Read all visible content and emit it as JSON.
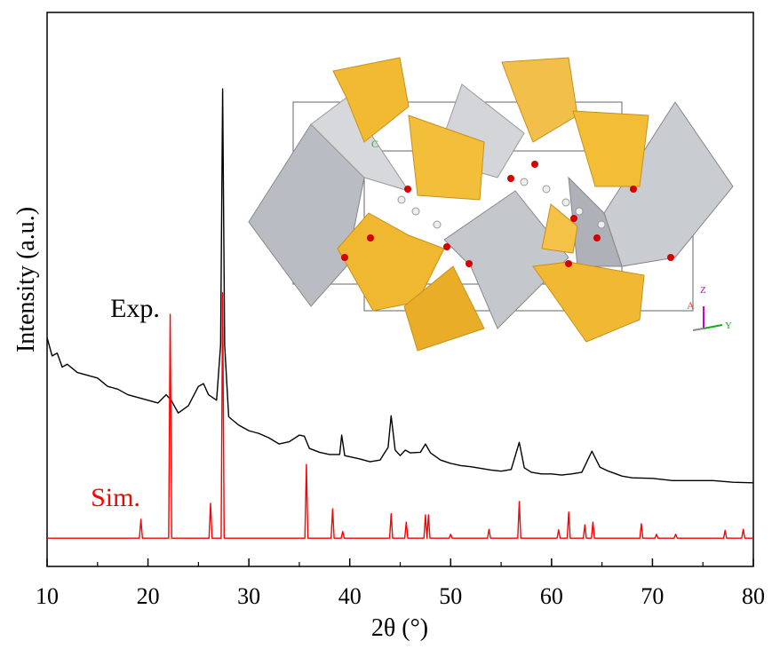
{
  "chart_data": {
    "type": "line",
    "x_label": "2θ (°)",
    "y_label": "Intensity (a.u.)",
    "xlim": [
      10,
      80
    ],
    "ylim": [
      0,
      100
    ],
    "xticks": [
      10,
      20,
      30,
      40,
      50,
      60,
      70,
      80
    ],
    "xminor_ticks": [
      15,
      25,
      35,
      45,
      55,
      65,
      75
    ],
    "inset_labels": [
      "C",
      "A",
      "Z",
      "Y"
    ],
    "series": [
      {
        "name": "Exp.",
        "color": "#000000",
        "x": [
          10,
          10.5,
          11,
          11.5,
          12,
          13,
          14,
          15,
          16,
          17,
          18,
          19,
          20,
          21,
          21.8,
          22.3,
          23,
          24,
          25,
          25.5,
          26,
          26.8,
          27.2,
          27.4,
          27.6,
          28,
          29,
          30,
          31,
          32,
          33,
          34,
          35,
          35.5,
          36,
          37,
          38,
          39,
          39.2,
          39.5,
          40,
          41,
          42,
          43,
          43.8,
          44.1,
          44.5,
          45,
          45.5,
          46,
          47,
          47.5,
          48,
          49,
          50,
          51,
          52,
          53,
          54,
          55,
          56,
          56.8,
          57.3,
          58,
          59,
          60,
          61,
          62,
          63,
          64,
          64.8,
          65.5,
          67,
          68,
          70,
          72,
          74,
          76,
          78,
          80
        ],
        "values": [
          41.3,
          38,
          38.5,
          36,
          36.5,
          35,
          34.5,
          34,
          32.5,
          32,
          31,
          30.5,
          30,
          29.5,
          31,
          30,
          27.7,
          29,
          32.5,
          33,
          31,
          30,
          40,
          86.2,
          40,
          27,
          25.5,
          24.5,
          24,
          23.2,
          22.1,
          22.5,
          23.7,
          23.5,
          21.3,
          20.6,
          20.2,
          20.2,
          23.7,
          20,
          19.8,
          19.4,
          18.9,
          19.2,
          21.5,
          27.2,
          21,
          20,
          21,
          20.5,
          20.6,
          22.1,
          20.5,
          19.2,
          18.6,
          18.2,
          18,
          17.7,
          17.4,
          17.2,
          17.5,
          22.4,
          17.8,
          17,
          16.7,
          16.7,
          16.5,
          16.7,
          17,
          20.8,
          17.9,
          17.3,
          16.3,
          16,
          15.9,
          15.5,
          15.5,
          15.5,
          15.2,
          15.1
        ]
      },
      {
        "name": "Sim.",
        "color": "#ff0000",
        "x": [
          10,
          19.15,
          19.3,
          19.45,
          22.05,
          22.2,
          22.35,
          26.05,
          26.2,
          26.35,
          27.25,
          27.4,
          27.55,
          35.55,
          35.7,
          35.85,
          38.15,
          38.3,
          38.45,
          39.15,
          39.3,
          39.45,
          43.95,
          44.1,
          44.25,
          45.45,
          45.6,
          45.75,
          47.35,
          47.5,
          47.65,
          47.8,
          47.95,
          49.85,
          50,
          50.15,
          53.65,
          53.8,
          53.95,
          56.65,
          56.8,
          56.95,
          60.55,
          60.7,
          60.85,
          61.55,
          61.7,
          61.85,
          63.15,
          63.3,
          63.45,
          63.95,
          64.1,
          64.25,
          68.75,
          68.9,
          69.05,
          70.25,
          70.4,
          70.55,
          72.15,
          72.3,
          72.45,
          77.05,
          77.2,
          77.35,
          78.85,
          79,
          79.15,
          80
        ],
        "values": [
          5.1,
          5.1,
          8.5,
          5.1,
          5.1,
          45.5,
          5.1,
          5.1,
          11.4,
          5.1,
          5.1,
          49.4,
          5.1,
          5.1,
          18.4,
          5.1,
          5.1,
          10.4,
          5.1,
          5.1,
          6.3,
          5.1,
          5.1,
          9.5,
          5.1,
          5.1,
          8,
          5.1,
          5.1,
          9.3,
          5.1,
          9.3,
          5.1,
          5.1,
          5.8,
          5.1,
          5.1,
          6.7,
          5.1,
          5.1,
          11.7,
          5.1,
          5.1,
          6.6,
          5.1,
          5.1,
          9.8,
          5.1,
          5.1,
          7.5,
          5.1,
          5.1,
          8,
          5.1,
          5.1,
          7.7,
          5.1,
          5.1,
          5.8,
          5.1,
          5.1,
          5.8,
          5.1,
          5.1,
          6.5,
          5.1,
          5.1,
          6.7,
          5.1,
          5.1
        ]
      }
    ]
  }
}
